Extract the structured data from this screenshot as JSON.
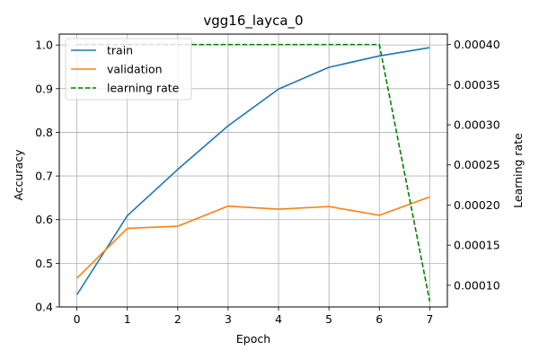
{
  "chart_data": {
    "type": "line",
    "title": "vgg16_layca_0",
    "xlabel": "Epoch",
    "ylabel": "Accuracy",
    "y2label": "Learning rate",
    "x": [
      0,
      1,
      2,
      3,
      4,
      5,
      6,
      7
    ],
    "xlim": [
      -0.35,
      7.35
    ],
    "ylim": [
      0.4,
      1.025
    ],
    "y2lim": [
      7.3e-05,
      0.000413
    ],
    "xticks": [
      "0",
      "1",
      "2",
      "3",
      "4",
      "5",
      "6",
      "7"
    ],
    "yticks": [
      "0.4",
      "0.5",
      "0.6",
      "0.7",
      "0.8",
      "0.9",
      "1.0"
    ],
    "y2ticks": [
      "0.00010",
      "0.00015",
      "0.00020",
      "0.00025",
      "0.00030",
      "0.00035",
      "0.00040"
    ],
    "grid": true,
    "legend_position": "top-left",
    "series": [
      {
        "name": "train",
        "axis": "left",
        "color": "#1f77b4",
        "dash": "solid",
        "values": [
          0.428,
          0.609,
          0.715,
          0.815,
          0.899,
          0.949,
          0.975,
          0.994
        ]
      },
      {
        "name": "validation",
        "axis": "left",
        "color": "#ff7f0e",
        "dash": "solid",
        "values": [
          0.466,
          0.58,
          0.585,
          0.631,
          0.624,
          0.63,
          0.61,
          0.652
        ]
      },
      {
        "name": "learning rate",
        "axis": "right",
        "color": "#008000",
        "dash": "dashed",
        "values": [
          0.0004,
          0.0004,
          0.0004,
          0.0004,
          0.0004,
          0.0004,
          0.0004,
          8e-05
        ]
      }
    ]
  }
}
